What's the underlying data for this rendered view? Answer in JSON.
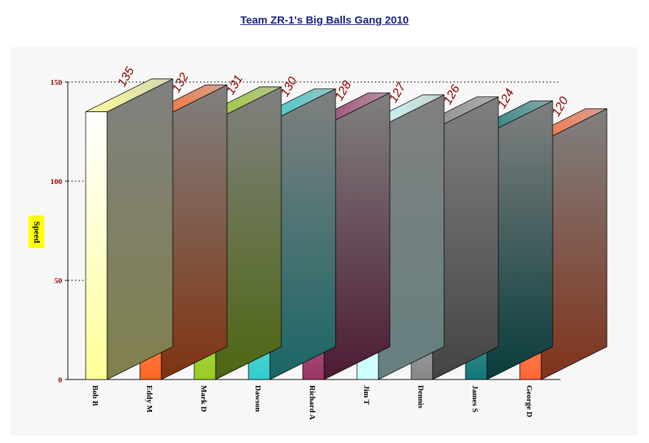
{
  "chart_data": {
    "type": "bar",
    "title": "Team ZR-1's Big Balls Gang 2010",
    "xlabel": "",
    "ylabel": "Speed",
    "ylim": [
      0,
      150
    ],
    "yticks": [
      "0",
      "50",
      "100",
      "150"
    ],
    "categories": [
      "Bob B",
      "Eddy M",
      "Mark D",
      "Dawson",
      "Richard A",
      "Jim T",
      "Dennis",
      "James S",
      "George D"
    ],
    "values": [
      135,
      132,
      131,
      130,
      128,
      127,
      126,
      124,
      120
    ],
    "value_labels": [
      "135",
      "132",
      "131",
      "130",
      "128",
      "127",
      "126",
      "124",
      "120"
    ],
    "grid": "horizontal dotted",
    "legend": "none",
    "bar_colors": [
      "#ffff99",
      "#ff6622",
      "#99cc22",
      "#33cccc",
      "#993366",
      "#ccffff",
      "#888888",
      "#117777",
      "#ff6633"
    ],
    "label_color": "#8b0000"
  }
}
